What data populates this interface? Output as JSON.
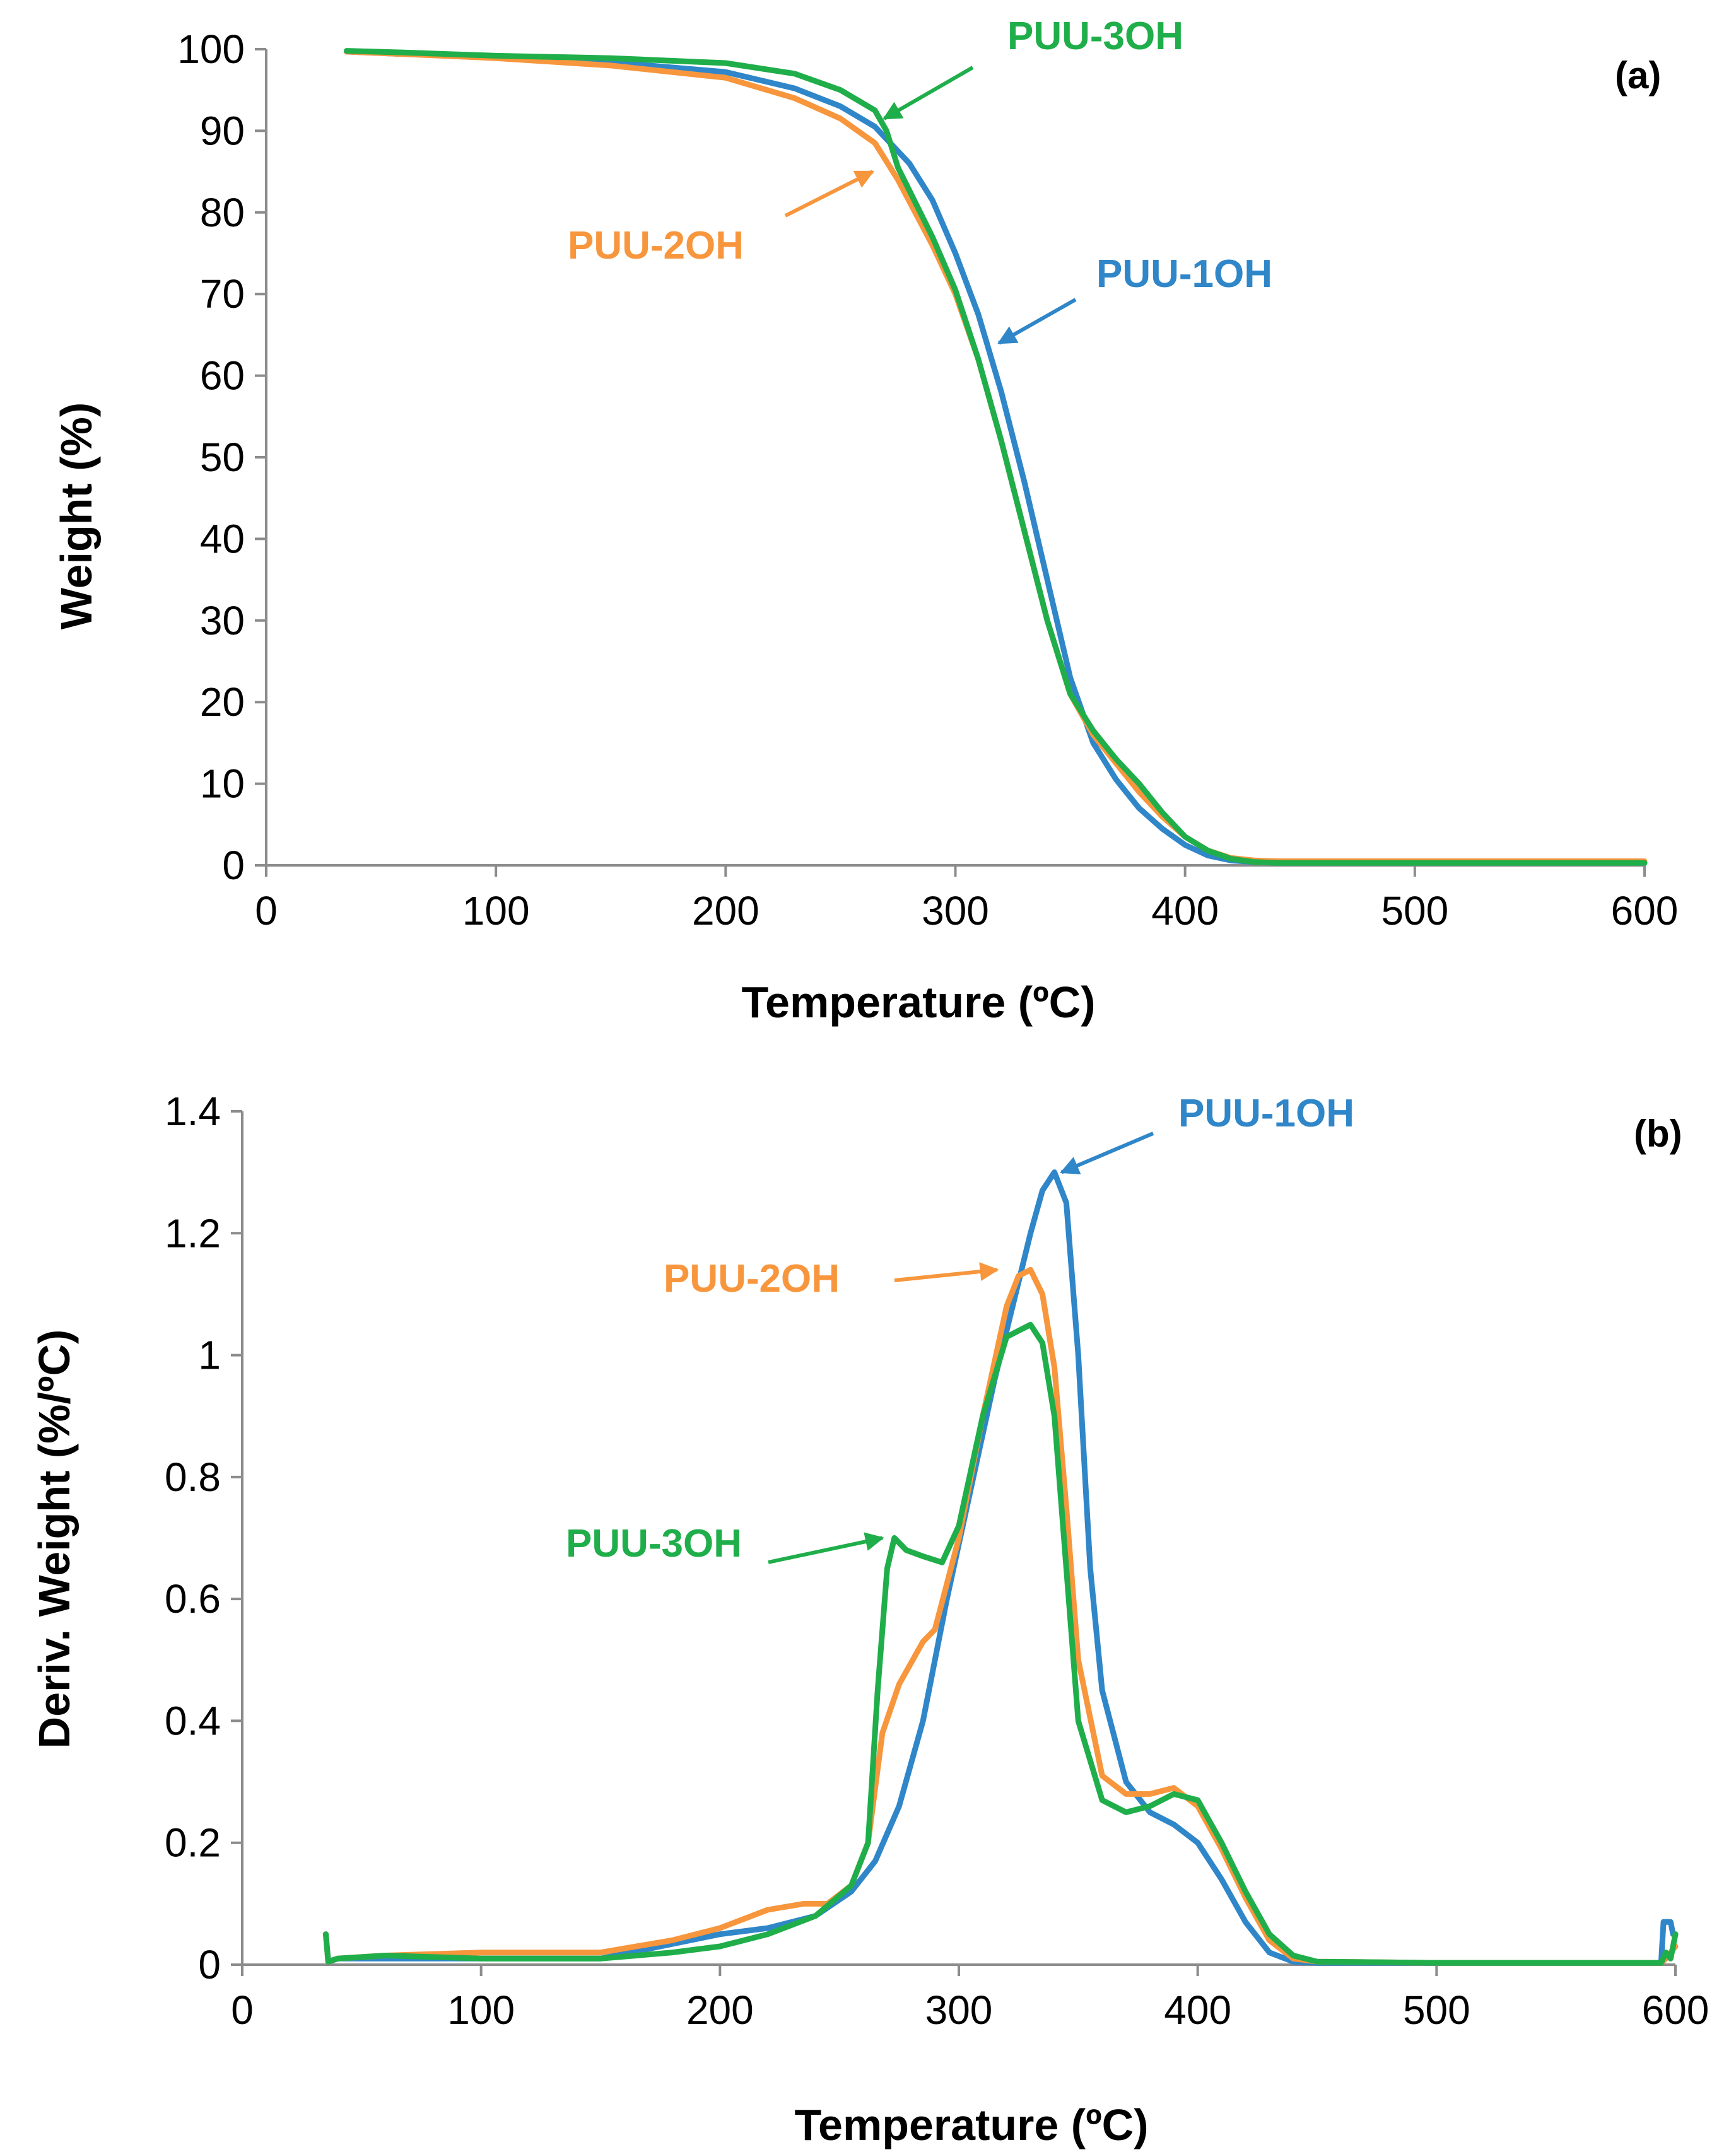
{
  "colors": {
    "PUU-1OH": "#2f86c8",
    "PUU-2OH": "#f7963c",
    "PUU-3OH": "#1fae4a"
  },
  "chart_data": [
    {
      "type": "line",
      "panel": "(a)",
      "xlabel": "Temperature (ºC)",
      "ylabel": "Weight (%)",
      "xlim": [
        0,
        600
      ],
      "ylim": [
        0,
        100
      ],
      "xticks": [
        0,
        100,
        200,
        300,
        400,
        500,
        600
      ],
      "yticks": [
        0,
        10,
        20,
        30,
        40,
        50,
        60,
        70,
        80,
        90,
        100
      ],
      "grid": false,
      "series": [
        {
          "name": "PUU-1OH",
          "x": [
            35,
            60,
            100,
            150,
            200,
            230,
            250,
            265,
            280,
            290,
            300,
            310,
            320,
            330,
            340,
            350,
            360,
            370,
            380,
            390,
            400,
            410,
            420,
            430,
            440,
            460,
            500,
            550,
            600
          ],
          "y": [
            99.7,
            99.4,
            99.0,
            98.4,
            97.2,
            95.2,
            93.0,
            90.5,
            86.0,
            81.5,
            75.0,
            67.5,
            58.0,
            47.0,
            35.0,
            23.0,
            15.0,
            10.5,
            7.0,
            4.5,
            2.5,
            1.2,
            0.6,
            0.4,
            0.3,
            0.3,
            0.3,
            0.3,
            0.3
          ]
        },
        {
          "name": "PUU-2OH",
          "x": [
            35,
            60,
            100,
            150,
            200,
            230,
            250,
            265,
            275,
            290,
            300,
            310,
            320,
            330,
            340,
            350,
            360,
            370,
            380,
            390,
            400,
            410,
            420,
            430,
            440,
            460,
            500,
            550,
            600
          ],
          "y": [
            99.7,
            99.4,
            98.9,
            98.0,
            96.5,
            94.0,
            91.5,
            88.5,
            84.0,
            76.0,
            70.0,
            62.0,
            52.0,
            41.0,
            30.0,
            21.0,
            16.0,
            12.5,
            9.0,
            6.0,
            3.5,
            1.8,
            0.9,
            0.6,
            0.5,
            0.5,
            0.5,
            0.5,
            0.5
          ]
        },
        {
          "name": "PUU-3OH",
          "x": [
            35,
            60,
            100,
            150,
            200,
            230,
            250,
            265,
            270,
            275,
            290,
            300,
            310,
            320,
            330,
            340,
            350,
            360,
            370,
            380,
            390,
            400,
            410,
            420,
            430,
            440,
            460,
            500,
            550,
            600
          ],
          "y": [
            99.8,
            99.6,
            99.2,
            98.9,
            98.3,
            97.0,
            95.0,
            92.5,
            90.0,
            85.5,
            77.0,
            70.5,
            62.0,
            52.0,
            41.0,
            30.0,
            21.0,
            16.5,
            13.0,
            10.0,
            6.5,
            3.5,
            1.8,
            0.8,
            0.4,
            0.3,
            0.3,
            0.3,
            0.3,
            0.3
          ]
        }
      ],
      "annotations": [
        {
          "text": "PUU-3OH",
          "series": "PUU-3OH",
          "point": [
            269,
            91.5
          ]
        },
        {
          "text": "PUU-2OH",
          "series": "PUU-2OH",
          "point": [
            264,
            85
          ]
        },
        {
          "text": "PUU-1OH",
          "series": "PUU-1OH",
          "point": [
            319,
            64
          ]
        },
        {
          "text": "(a)"
        }
      ]
    },
    {
      "type": "line",
      "panel": "(b)",
      "xlabel": "Temperature (ºC)",
      "ylabel": "Deriv. Weight (%/ºC)",
      "xlim": [
        0,
        600
      ],
      "ylim": [
        0,
        1.4
      ],
      "xticks": [
        0,
        100,
        200,
        300,
        400,
        500,
        600
      ],
      "yticks": [
        0,
        0.2,
        0.4,
        0.6,
        0.8,
        1,
        1.2,
        1.4
      ],
      "ytick_labels": [
        "0",
        "0.2",
        "0.4",
        "0.6",
        "0.8",
        "1",
        "1.2",
        "1.4"
      ],
      "grid": false,
      "series": [
        {
          "name": "PUU-1OH",
          "x": [
            35,
            36,
            40,
            60,
            100,
            150,
            200,
            220,
            240,
            255,
            265,
            275,
            285,
            295,
            305,
            315,
            325,
            330,
            335,
            340,
            345,
            350,
            355,
            360,
            370,
            380,
            390,
            400,
            410,
            420,
            430,
            440,
            450,
            500,
            550,
            594,
            595,
            598,
            599,
            600
          ],
          "y": [
            0.05,
            0.005,
            0.01,
            0.01,
            0.01,
            0.01,
            0.05,
            0.06,
            0.08,
            0.12,
            0.17,
            0.26,
            0.4,
            0.6,
            0.78,
            0.96,
            1.12,
            1.2,
            1.27,
            1.3,
            1.25,
            1.0,
            0.65,
            0.45,
            0.3,
            0.25,
            0.23,
            0.2,
            0.14,
            0.07,
            0.02,
            0.005,
            0.003,
            0.003,
            0.003,
            0.003,
            0.07,
            0.07,
            0.05,
            0.05
          ]
        },
        {
          "name": "PUU-2OH",
          "x": [
            35,
            36,
            40,
            60,
            100,
            150,
            180,
            200,
            220,
            235,
            245,
            255,
            262,
            268,
            275,
            285,
            290,
            300,
            310,
            320,
            325,
            330,
            335,
            340,
            345,
            350,
            360,
            370,
            380,
            390,
            400,
            410,
            420,
            430,
            440,
            450,
            500,
            550,
            594,
            596,
            598,
            600
          ],
          "y": [
            0.05,
            0.005,
            0.01,
            0.015,
            0.02,
            0.02,
            0.04,
            0.06,
            0.09,
            0.1,
            0.1,
            0.13,
            0.2,
            0.38,
            0.46,
            0.53,
            0.55,
            0.7,
            0.9,
            1.08,
            1.13,
            1.14,
            1.1,
            0.98,
            0.75,
            0.5,
            0.31,
            0.28,
            0.28,
            0.29,
            0.26,
            0.19,
            0.11,
            0.04,
            0.01,
            0.005,
            0.003,
            0.003,
            0.003,
            0.01,
            0.02,
            0.03
          ]
        },
        {
          "name": "PUU-3OH",
          "x": [
            35,
            36,
            40,
            60,
            100,
            150,
            180,
            200,
            220,
            240,
            255,
            262,
            266,
            270,
            273,
            278,
            285,
            293,
            300,
            310,
            320,
            330,
            335,
            340,
            345,
            350,
            360,
            370,
            380,
            390,
            400,
            410,
            420,
            430,
            440,
            450,
            500,
            550,
            594,
            596,
            598,
            600
          ],
          "y": [
            0.05,
            0.005,
            0.01,
            0.015,
            0.01,
            0.01,
            0.02,
            0.03,
            0.05,
            0.08,
            0.13,
            0.2,
            0.45,
            0.65,
            0.7,
            0.68,
            0.67,
            0.66,
            0.72,
            0.9,
            1.03,
            1.05,
            1.02,
            0.9,
            0.65,
            0.4,
            0.27,
            0.25,
            0.26,
            0.28,
            0.27,
            0.2,
            0.12,
            0.05,
            0.015,
            0.005,
            0.003,
            0.003,
            0.003,
            0.02,
            0.01,
            0.05
          ]
        }
      ],
      "annotations": [
        {
          "text": "PUU-1OH",
          "series": "PUU-1OH",
          "point": [
            343,
            1.3
          ]
        },
        {
          "text": "PUU-2OH",
          "series": "PUU-2OH",
          "point": [
            316,
            1.14
          ]
        },
        {
          "text": "PUU-3OH",
          "series": "PUU-3OH",
          "point": [
            268,
            0.7
          ]
        },
        {
          "text": "(b)"
        }
      ]
    }
  ]
}
